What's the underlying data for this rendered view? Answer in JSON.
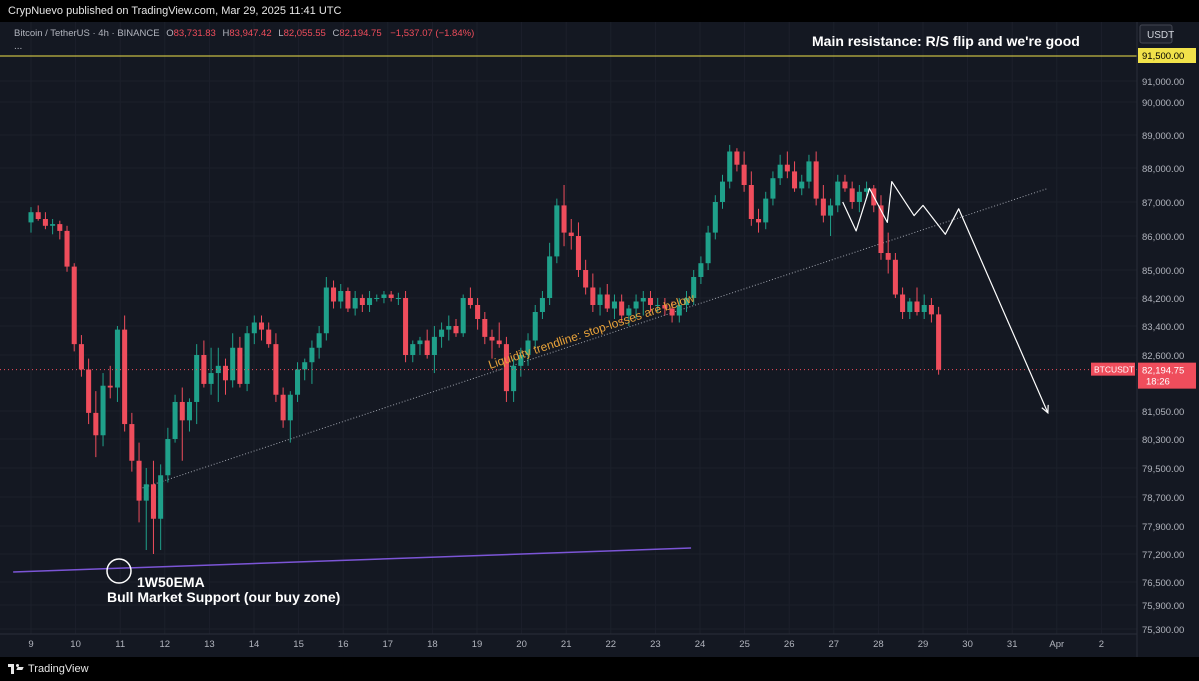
{
  "header": {
    "published_text": "CrypNuevo published on TradingView.com, Mar 29, 2025 11:41 UTC"
  },
  "legend": {
    "symbol": "Bitcoin / TetherUS · 4h · BINANCE",
    "o_label": "O",
    "o_value": "83,731.83",
    "h_label": "H",
    "h_value": "83,947.42",
    "l_label": "L",
    "l_value": "82,055.55",
    "c_label": "C",
    "c_value": "82,194.75",
    "change": "−1,537.07 (−1.84%)",
    "ellipsis": "..."
  },
  "axis": {
    "currency": "USDT",
    "resistance_tag": "91,500.00",
    "price_tag": "82,194.75",
    "countdown": "18:26",
    "symbol_tag": "BTCUSDT"
  },
  "footer": {
    "brand": "TradingView"
  },
  "colors": {
    "bull": "#1fa08a",
    "bear": "#ef4d5c",
    "resistance": "#f1e24a",
    "ema": "#7b55d6",
    "trendline": "#9fa3ad",
    "annotation_orange": "#e8a23a",
    "projection": "#ffffff"
  },
  "chart_data": {
    "type": "candlestick",
    "instrument": "Bitcoin / TetherUS",
    "timeframe": "4h",
    "exchange": "BINANCE",
    "y_axis": {
      "ticks": [
        {
          "value": 91500,
          "label": "91,500.00"
        },
        {
          "value": 91000,
          "label": "91,000.00"
        },
        {
          "value": 90000,
          "label": "90,000.00"
        },
        {
          "value": 89000,
          "label": "89,000.00"
        },
        {
          "value": 88000,
          "label": "88,000.00"
        },
        {
          "value": 87000,
          "label": "87,000.00"
        },
        {
          "value": 86000,
          "label": "86,000.00"
        },
        {
          "value": 85000,
          "label": "85,000.00"
        },
        {
          "value": 84200,
          "label": "84,200.00"
        },
        {
          "value": 83400,
          "label": "83,400.00"
        },
        {
          "value": 82600,
          "label": "82,600.00"
        },
        {
          "value": 81050,
          "label": "81,050.00"
        },
        {
          "value": 80300,
          "label": "80,300.00"
        },
        {
          "value": 79500,
          "label": "79,500.00"
        },
        {
          "value": 78700,
          "label": "78,700.00"
        },
        {
          "value": 77900,
          "label": "77,900.00"
        },
        {
          "value": 77200,
          "label": "77,200.00"
        },
        {
          "value": 76500,
          "label": "76,500.00"
        },
        {
          "value": 75900,
          "label": "75,900.00"
        },
        {
          "value": 75300,
          "label": "75,300.00"
        }
      ]
    },
    "x_axis": {
      "ticks": [
        {
          "day": 9,
          "label": "9"
        },
        {
          "day": 10,
          "label": "10"
        },
        {
          "day": 11,
          "label": "11"
        },
        {
          "day": 12,
          "label": "12"
        },
        {
          "day": 13,
          "label": "13"
        },
        {
          "day": 14,
          "label": "14"
        },
        {
          "day": 15,
          "label": "15"
        },
        {
          "day": 16,
          "label": "16"
        },
        {
          "day": 17,
          "label": "17"
        },
        {
          "day": 18,
          "label": "18"
        },
        {
          "day": 19,
          "label": "19"
        },
        {
          "day": 20,
          "label": "20"
        },
        {
          "day": 21,
          "label": "21"
        },
        {
          "day": 22,
          "label": "22"
        },
        {
          "day": 23,
          "label": "23"
        },
        {
          "day": 24,
          "label": "24"
        },
        {
          "day": 25,
          "label": "25"
        },
        {
          "day": 26,
          "label": "26"
        },
        {
          "day": 27,
          "label": "27"
        },
        {
          "day": 28,
          "label": "28"
        },
        {
          "day": 29,
          "label": "29"
        },
        {
          "day": 30,
          "label": "30"
        },
        {
          "day": 31,
          "label": "31"
        },
        {
          "day": 32,
          "label": "Apr"
        },
        {
          "day": 33,
          "label": "2"
        }
      ]
    },
    "candles": [
      {
        "o": 86400,
        "h": 86850,
        "l": 86100,
        "c": 86700
      },
      {
        "o": 86700,
        "h": 86900,
        "l": 86450,
        "c": 86500
      },
      {
        "o": 86500,
        "h": 86700,
        "l": 86200,
        "c": 86300
      },
      {
        "o": 86300,
        "h": 86500,
        "l": 86050,
        "c": 86350
      },
      {
        "o": 86350,
        "h": 86450,
        "l": 85900,
        "c": 86150
      },
      {
        "o": 86150,
        "h": 86300,
        "l": 84950,
        "c": 85100
      },
      {
        "o": 85100,
        "h": 85200,
        "l": 82700,
        "c": 82900
      },
      {
        "o": 82900,
        "h": 83150,
        "l": 82000,
        "c": 82200
      },
      {
        "o": 82200,
        "h": 82500,
        "l": 80700,
        "c": 81000
      },
      {
        "o": 81000,
        "h": 81600,
        "l": 79800,
        "c": 80400
      },
      {
        "o": 80400,
        "h": 82100,
        "l": 80100,
        "c": 81750
      },
      {
        "o": 81750,
        "h": 82300,
        "l": 81400,
        "c": 81700
      },
      {
        "o": 81700,
        "h": 83400,
        "l": 81300,
        "c": 83300
      },
      {
        "o": 83300,
        "h": 83700,
        "l": 80500,
        "c": 80700
      },
      {
        "o": 80700,
        "h": 81000,
        "l": 79400,
        "c": 79700
      },
      {
        "o": 79700,
        "h": 80200,
        "l": 78000,
        "c": 78600
      },
      {
        "o": 78600,
        "h": 79500,
        "l": 77300,
        "c": 79050
      },
      {
        "o": 79050,
        "h": 79700,
        "l": 77200,
        "c": 78100
      },
      {
        "o": 78100,
        "h": 79600,
        "l": 77300,
        "c": 79300
      },
      {
        "o": 79300,
        "h": 80600,
        "l": 79100,
        "c": 80300
      },
      {
        "o": 80300,
        "h": 81500,
        "l": 80200,
        "c": 81300
      },
      {
        "o": 81300,
        "h": 81700,
        "l": 79700,
        "c": 80800
      },
      {
        "o": 80800,
        "h": 81400,
        "l": 80500,
        "c": 81300
      },
      {
        "o": 81300,
        "h": 82900,
        "l": 80700,
        "c": 82600
      },
      {
        "o": 82600,
        "h": 83000,
        "l": 81700,
        "c": 81800
      },
      {
        "o": 81800,
        "h": 82800,
        "l": 81500,
        "c": 82100
      },
      {
        "o": 82100,
        "h": 82800,
        "l": 81300,
        "c": 82300
      },
      {
        "o": 82300,
        "h": 82500,
        "l": 81500,
        "c": 81900
      },
      {
        "o": 81900,
        "h": 83200,
        "l": 81700,
        "c": 82800
      },
      {
        "o": 82800,
        "h": 83100,
        "l": 81700,
        "c": 81800
      },
      {
        "o": 81800,
        "h": 83400,
        "l": 81600,
        "c": 83200
      },
      {
        "o": 83200,
        "h": 83700,
        "l": 82900,
        "c": 83500
      },
      {
        "o": 83500,
        "h": 83700,
        "l": 83000,
        "c": 83300
      },
      {
        "o": 83300,
        "h": 83500,
        "l": 82800,
        "c": 82900
      },
      {
        "o": 82900,
        "h": 83200,
        "l": 81300,
        "c": 81500
      },
      {
        "o": 81500,
        "h": 81700,
        "l": 80600,
        "c": 80800
      },
      {
        "o": 80800,
        "h": 81600,
        "l": 80200,
        "c": 81500
      },
      {
        "o": 81500,
        "h": 82400,
        "l": 81300,
        "c": 82200
      },
      {
        "o": 82200,
        "h": 82500,
        "l": 81900,
        "c": 82400
      },
      {
        "o": 82400,
        "h": 83000,
        "l": 81800,
        "c": 82800
      },
      {
        "o": 82800,
        "h": 83400,
        "l": 82500,
        "c": 83200
      },
      {
        "o": 83200,
        "h": 84800,
        "l": 83000,
        "c": 84500
      },
      {
        "o": 84500,
        "h": 84700,
        "l": 83900,
        "c": 84100
      },
      {
        "o": 84100,
        "h": 84600,
        "l": 83900,
        "c": 84400
      },
      {
        "o": 84400,
        "h": 84500,
        "l": 83800,
        "c": 83900
      },
      {
        "o": 83900,
        "h": 84400,
        "l": 83700,
        "c": 84200
      },
      {
        "o": 84200,
        "h": 84300,
        "l": 83800,
        "c": 84000
      },
      {
        "o": 84000,
        "h": 84400,
        "l": 83800,
        "c": 84200
      },
      {
        "o": 84200,
        "h": 84300,
        "l": 84100,
        "c": 84200
      },
      {
        "o": 84200,
        "h": 84400,
        "l": 84050,
        "c": 84300
      },
      {
        "o": 84300,
        "h": 84400,
        "l": 84100,
        "c": 84200
      },
      {
        "o": 84200,
        "h": 84350,
        "l": 84000,
        "c": 84200
      },
      {
        "o": 84200,
        "h": 84400,
        "l": 82400,
        "c": 82600
      },
      {
        "o": 82600,
        "h": 83000,
        "l": 82400,
        "c": 82900
      },
      {
        "o": 82900,
        "h": 83100,
        "l": 82600,
        "c": 83000
      },
      {
        "o": 83000,
        "h": 83300,
        "l": 82500,
        "c": 82600
      },
      {
        "o": 82600,
        "h": 83400,
        "l": 82100,
        "c": 83100
      },
      {
        "o": 83100,
        "h": 83500,
        "l": 82800,
        "c": 83300
      },
      {
        "o": 83300,
        "h": 83700,
        "l": 83000,
        "c": 83400
      },
      {
        "o": 83400,
        "h": 83600,
        "l": 83100,
        "c": 83200
      },
      {
        "o": 83200,
        "h": 84300,
        "l": 83100,
        "c": 84200
      },
      {
        "o": 84200,
        "h": 84500,
        "l": 83900,
        "c": 84000
      },
      {
        "o": 84000,
        "h": 84200,
        "l": 83300,
        "c": 83600
      },
      {
        "o": 83600,
        "h": 83800,
        "l": 82900,
        "c": 83100
      },
      {
        "o": 83100,
        "h": 83300,
        "l": 82500,
        "c": 83000
      },
      {
        "o": 83000,
        "h": 83500,
        "l": 82800,
        "c": 82900
      },
      {
        "o": 82900,
        "h": 83100,
        "l": 81300,
        "c": 81600
      },
      {
        "o": 81600,
        "h": 82500,
        "l": 81300,
        "c": 82300
      },
      {
        "o": 82300,
        "h": 82800,
        "l": 82000,
        "c": 82600
      },
      {
        "o": 82600,
        "h": 83200,
        "l": 82300,
        "c": 83000
      },
      {
        "o": 83000,
        "h": 84000,
        "l": 82800,
        "c": 83800
      },
      {
        "o": 83800,
        "h": 84400,
        "l": 83600,
        "c": 84200
      },
      {
        "o": 84200,
        "h": 85800,
        "l": 84000,
        "c": 85400
      },
      {
        "o": 85400,
        "h": 87100,
        "l": 85200,
        "c": 86900
      },
      {
        "o": 86900,
        "h": 87500,
        "l": 85700,
        "c": 86100
      },
      {
        "o": 86100,
        "h": 86500,
        "l": 85600,
        "c": 86000
      },
      {
        "o": 86000,
        "h": 86400,
        "l": 84800,
        "c": 85000
      },
      {
        "o": 85000,
        "h": 85300,
        "l": 84300,
        "c": 84500
      },
      {
        "o": 84500,
        "h": 84900,
        "l": 83800,
        "c": 84000
      },
      {
        "o": 84000,
        "h": 84500,
        "l": 83700,
        "c": 84300
      },
      {
        "o": 84300,
        "h": 84600,
        "l": 83800,
        "c": 83900
      },
      {
        "o": 83900,
        "h": 84300,
        "l": 83600,
        "c": 84100
      },
      {
        "o": 84100,
        "h": 84300,
        "l": 83500,
        "c": 83700
      },
      {
        "o": 83700,
        "h": 84000,
        "l": 83400,
        "c": 83900
      },
      {
        "o": 83900,
        "h": 84300,
        "l": 83600,
        "c": 84100
      },
      {
        "o": 84100,
        "h": 84400,
        "l": 83700,
        "c": 84200
      },
      {
        "o": 84200,
        "h": 84400,
        "l": 83800,
        "c": 84000
      },
      {
        "o": 84000,
        "h": 84200,
        "l": 83800,
        "c": 84000
      },
      {
        "o": 84000,
        "h": 84200,
        "l": 83700,
        "c": 83900
      },
      {
        "o": 83900,
        "h": 84100,
        "l": 83500,
        "c": 83700
      },
      {
        "o": 83700,
        "h": 84200,
        "l": 83500,
        "c": 84000
      },
      {
        "o": 84000,
        "h": 84400,
        "l": 83800,
        "c": 84200
      },
      {
        "o": 84200,
        "h": 85000,
        "l": 84000,
        "c": 84800
      },
      {
        "o": 84800,
        "h": 85400,
        "l": 84600,
        "c": 85200
      },
      {
        "o": 85200,
        "h": 86300,
        "l": 85000,
        "c": 86100
      },
      {
        "o": 86100,
        "h": 87200,
        "l": 85900,
        "c": 87000
      },
      {
        "o": 87000,
        "h": 87800,
        "l": 86800,
        "c": 87600
      },
      {
        "o": 87600,
        "h": 88700,
        "l": 87400,
        "c": 88500
      },
      {
        "o": 88500,
        "h": 88600,
        "l": 87900,
        "c": 88100
      },
      {
        "o": 88100,
        "h": 88500,
        "l": 87300,
        "c": 87500
      },
      {
        "o": 87500,
        "h": 87900,
        "l": 86300,
        "c": 86500
      },
      {
        "o": 86500,
        "h": 86800,
        "l": 86100,
        "c": 86400
      },
      {
        "o": 86400,
        "h": 87300,
        "l": 86200,
        "c": 87100
      },
      {
        "o": 87100,
        "h": 87900,
        "l": 86900,
        "c": 87700
      },
      {
        "o": 87700,
        "h": 88400,
        "l": 87500,
        "c": 88100
      },
      {
        "o": 88100,
        "h": 88500,
        "l": 87700,
        "c": 87900
      },
      {
        "o": 87900,
        "h": 88200,
        "l": 87300,
        "c": 87400
      },
      {
        "o": 87400,
        "h": 87800,
        "l": 87200,
        "c": 87600
      },
      {
        "o": 87600,
        "h": 88400,
        "l": 87400,
        "c": 88200
      },
      {
        "o": 88200,
        "h": 88500,
        "l": 86900,
        "c": 87100
      },
      {
        "o": 87100,
        "h": 87500,
        "l": 86400,
        "c": 86600
      },
      {
        "o": 86600,
        "h": 87100,
        "l": 86000,
        "c": 86900
      },
      {
        "o": 86900,
        "h": 87800,
        "l": 86700,
        "c": 87600
      },
      {
        "o": 87600,
        "h": 87800,
        "l": 87300,
        "c": 87400
      },
      {
        "o": 87400,
        "h": 87600,
        "l": 86800,
        "c": 87000
      },
      {
        "o": 87000,
        "h": 87500,
        "l": 86700,
        "c": 87300
      },
      {
        "o": 87300,
        "h": 87600,
        "l": 87100,
        "c": 87400
      },
      {
        "o": 87400,
        "h": 87500,
        "l": 86700,
        "c": 86900
      },
      {
        "o": 86900,
        "h": 87200,
        "l": 85300,
        "c": 85500
      },
      {
        "o": 85500,
        "h": 86100,
        "l": 84900,
        "c": 85300
      },
      {
        "o": 85300,
        "h": 85500,
        "l": 84200,
        "c": 84300
      },
      {
        "o": 84300,
        "h": 84500,
        "l": 83600,
        "c": 83800
      },
      {
        "o": 83800,
        "h": 84200,
        "l": 83600,
        "c": 84100
      },
      {
        "o": 84100,
        "h": 84500,
        "l": 83700,
        "c": 83800
      },
      {
        "o": 83800,
        "h": 84300,
        "l": 83600,
        "c": 84000
      },
      {
        "o": 84000,
        "h": 84200,
        "l": 83500,
        "c": 83732
      },
      {
        "o": 83732,
        "h": 83947,
        "l": 82056,
        "c": 82195
      }
    ],
    "series": [
      {
        "name": "1W50EMA",
        "points": [
          {
            "day": 8.6,
            "y": 76750
          },
          {
            "day": 23.8,
            "y": 77350
          }
        ]
      }
    ],
    "trendline": {
      "start": {
        "day": 11.5,
        "y": 78950
      },
      "end": {
        "day": 31.8,
        "y": 87400
      }
    },
    "resistance_level": 91500,
    "current_price": 82194.75,
    "projection_path": [
      {
        "day": 27.2,
        "y": 87000
      },
      {
        "day": 27.5,
        "y": 86150
      },
      {
        "day": 27.8,
        "y": 87400
      },
      {
        "day": 28.2,
        "y": 86400
      },
      {
        "day": 28.3,
        "y": 87600
      },
      {
        "day": 28.8,
        "y": 86600
      },
      {
        "day": 29.0,
        "y": 86900
      },
      {
        "day": 29.5,
        "y": 86050
      },
      {
        "day": 29.8,
        "y": 86800
      },
      {
        "day": 31.8,
        "y": 81000
      }
    ],
    "annotations": {
      "resistance": "Main resistance: R/S flip and we're good",
      "trendline": "Liquidity trendline: stop-losses are below",
      "ema_title": "1W50EMA",
      "ema_subtitle": "Bull Market Support (our buy zone)"
    }
  }
}
